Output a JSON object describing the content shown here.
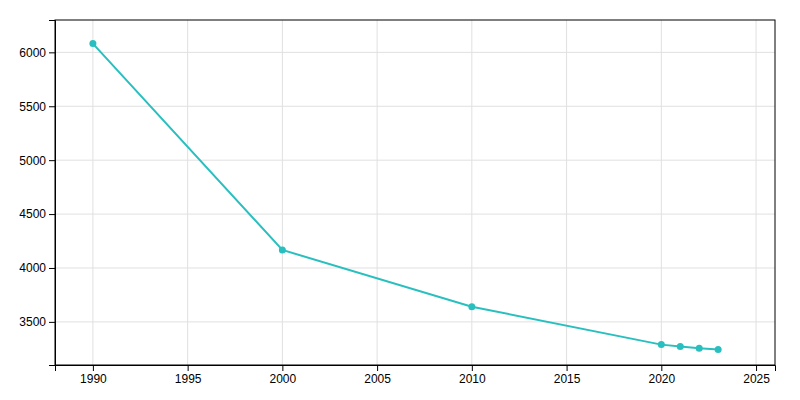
{
  "chart_data": {
    "type": "line",
    "x": [
      1990,
      2000,
      2010,
      2020,
      2021,
      2022,
      2023
    ],
    "values": [
      6081,
      4167,
      3641,
      3289,
      3271,
      3256,
      3243
    ],
    "color": "#2abfbf",
    "marker": "circle",
    "xlim": [
      1988,
      2026
    ],
    "ylim": [
      3100,
      6300
    ],
    "xticks": [
      1990,
      1995,
      2000,
      2005,
      2010,
      2015,
      2020,
      2025
    ],
    "yticks": [
      3500,
      4000,
      4500,
      5000,
      5500,
      6000
    ],
    "grid": true
  }
}
